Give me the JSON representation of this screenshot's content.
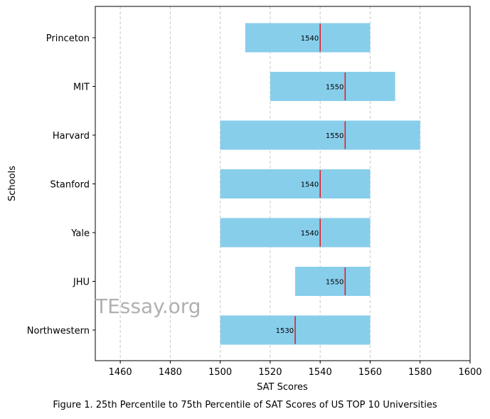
{
  "chart_data": {
    "type": "bar",
    "orientation": "horizontal-range",
    "categories": [
      "Princeton",
      "MIT",
      "Harvard",
      "Stanford",
      "Yale",
      "JHU",
      "Northwestern"
    ],
    "p25": [
      1510,
      1520,
      1500,
      1500,
      1500,
      1530,
      1500
    ],
    "p75": [
      1560,
      1570,
      1580,
      1560,
      1560,
      1560,
      1560
    ],
    "median": [
      1540,
      1550,
      1550,
      1540,
      1540,
      1550,
      1530
    ],
    "median_labels": [
      "1540",
      "1550",
      "1550",
      "1540",
      "1540",
      "1550",
      "1530"
    ],
    "xlim": [
      1450,
      1600
    ],
    "xticks": [
      1460,
      1480,
      1500,
      1520,
      1540,
      1560,
      1580,
      1600
    ],
    "xtick_labels": [
      "1460",
      "1480",
      "1500",
      "1520",
      "1540",
      "1560",
      "1580",
      "1600"
    ],
    "xlabel": "SAT Scores",
    "ylabel": "Schools",
    "grid": "x-dashed",
    "bar_color": "#87CEEB",
    "median_color": "#e8141b",
    "grid_color": "#c8c8c8"
  },
  "watermark": "TEssay.org",
  "caption": "Figure 1. 25th Percentile to 75th Percentile of SAT Scores of US TOP 10 Universities"
}
